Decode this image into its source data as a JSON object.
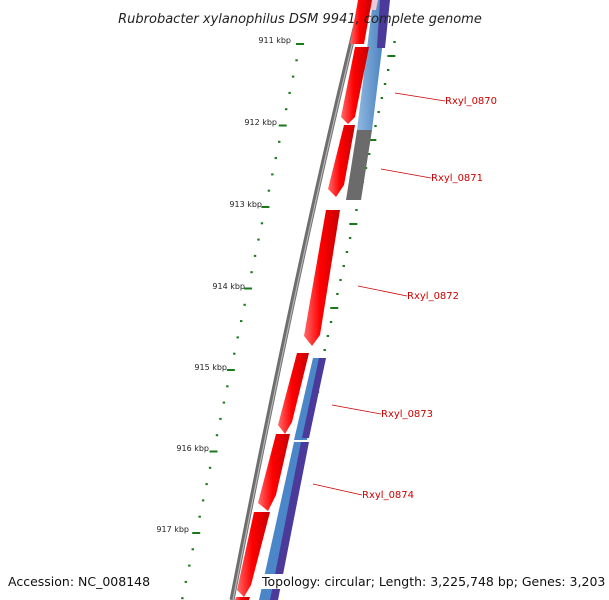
{
  "title": "Rubrobacter xylanophilus DSM 9941, complete genome",
  "footer": {
    "accession": "Accession: NC_008148",
    "stats": "Topology: circular; Length: 3,225,748 bp; Genes: 3,203"
  },
  "ticks": [
    {
      "label": "911 kbp"
    },
    {
      "label": "912 kbp"
    },
    {
      "label": "913 kbp"
    },
    {
      "label": "914 kbp"
    },
    {
      "label": "915 kbp"
    },
    {
      "label": "916 kbp"
    },
    {
      "label": "917 kbp"
    }
  ],
  "genes": [
    {
      "label": "Rxyl_0870"
    },
    {
      "label": "Rxyl_0871"
    },
    {
      "label": "Rxyl_0872"
    },
    {
      "label": "Rxyl_0873"
    },
    {
      "label": "Rxyl_0874"
    }
  ],
  "colors": {
    "cds": "#ff0000",
    "backbone": "#808080",
    "ticks": "#1a7a1a",
    "feature_blue": "#4a86c8",
    "feature_purple": "#4b3a9a",
    "feature_grey": "#707070",
    "label": "#cc0000"
  }
}
